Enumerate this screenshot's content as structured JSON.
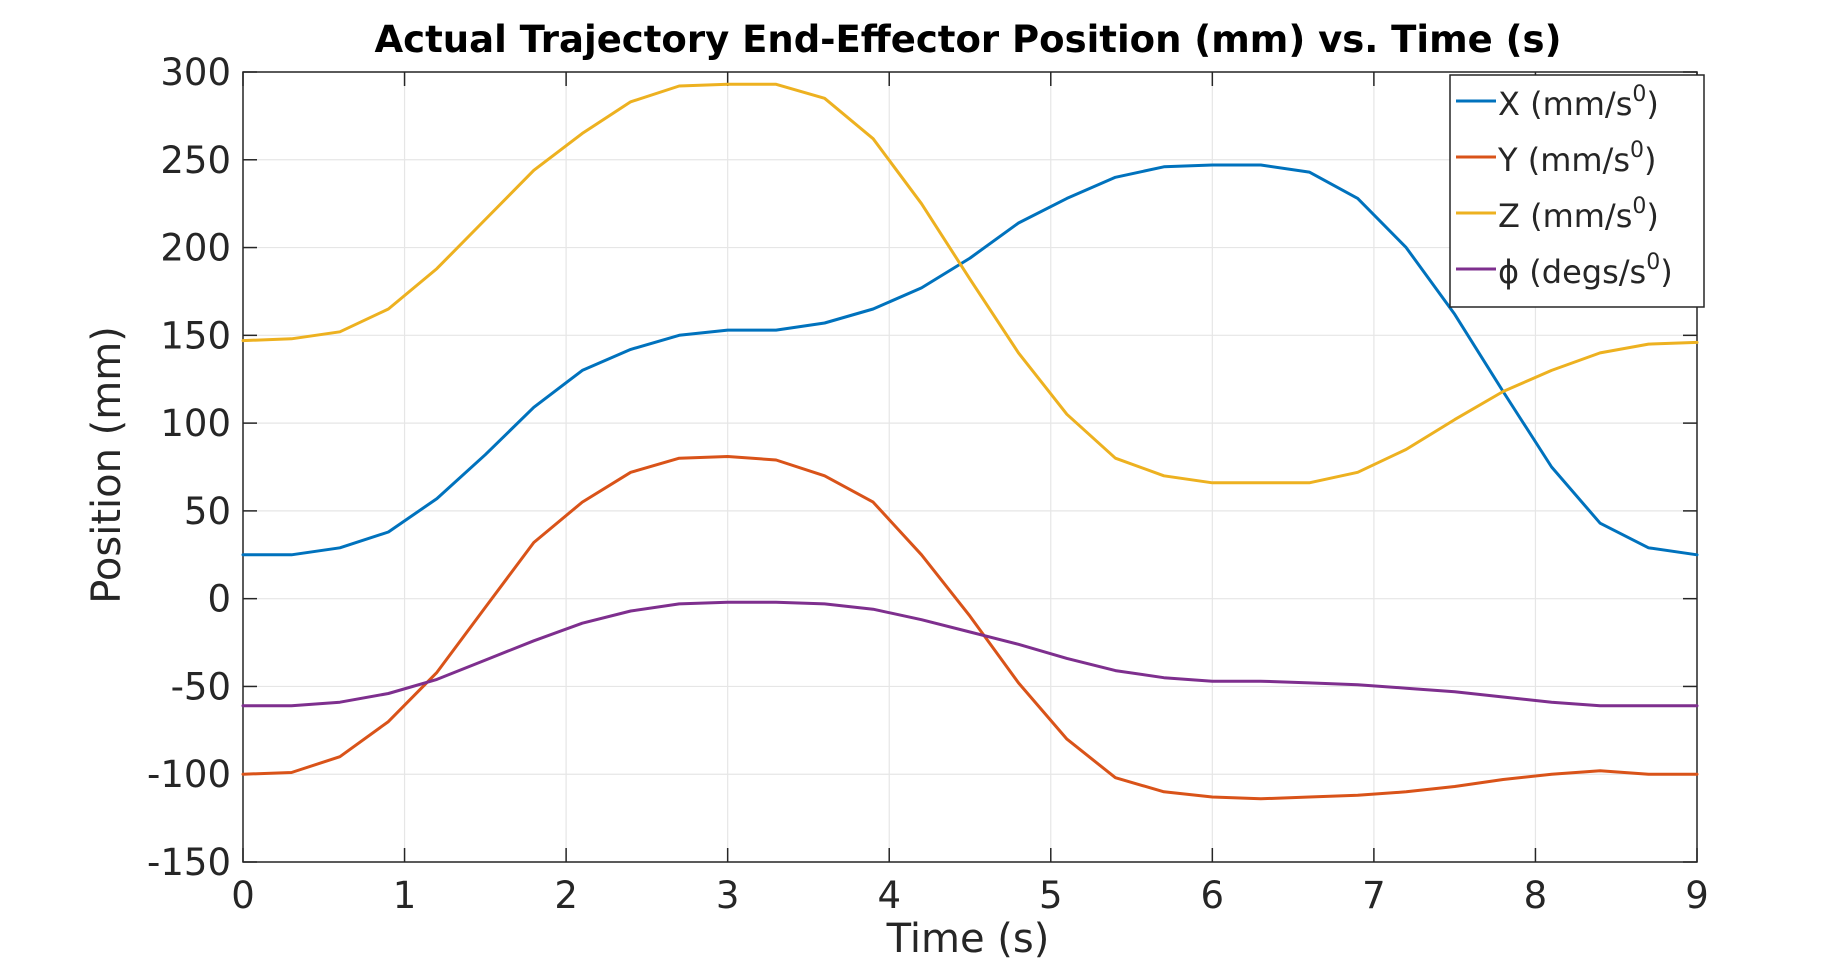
{
  "chart_data": {
    "type": "line",
    "title": "Actual Trajectory End-Effector Position (mm) vs. Time (s)",
    "xlabel": "Time (s)",
    "ylabel": "Position (mm)",
    "xlim": [
      0,
      9
    ],
    "ylim": [
      -150,
      300
    ],
    "xticks": [
      0,
      1,
      2,
      3,
      4,
      5,
      6,
      7,
      8,
      9
    ],
    "yticks": [
      -150,
      -100,
      -50,
      0,
      50,
      100,
      150,
      200,
      250,
      300
    ],
    "grid": true,
    "legend_position": "top-right",
    "series": [
      {
        "name": "X (mm/s",
        "superscript": "0",
        "suffix": ")",
        "color": "#0072BD",
        "x": [
          0,
          0.3,
          0.6,
          0.9,
          1.2,
          1.5,
          1.8,
          2.1,
          2.4,
          2.7,
          3.0,
          3.3,
          3.6,
          3.9,
          4.2,
          4.5,
          4.8,
          5.1,
          5.4,
          5.7,
          6.0,
          6.3,
          6.6,
          6.9,
          7.2,
          7.5,
          7.8,
          8.1,
          8.4,
          8.7,
          9.0
        ],
        "y": [
          25,
          25,
          29,
          38,
          57,
          82,
          109,
          130,
          142,
          150,
          153,
          153,
          157,
          165,
          177,
          194,
          214,
          228,
          240,
          246,
          247,
          247,
          243,
          228,
          200,
          162,
          118,
          75,
          43,
          29,
          25
        ]
      },
      {
        "name": "Y (mm/s",
        "superscript": "0",
        "suffix": ")",
        "color": "#D95319",
        "x": [
          0,
          0.3,
          0.6,
          0.9,
          1.2,
          1.5,
          1.8,
          2.1,
          2.4,
          2.7,
          3.0,
          3.3,
          3.6,
          3.9,
          4.2,
          4.5,
          4.8,
          5.1,
          5.4,
          5.7,
          6.0,
          6.3,
          6.6,
          6.9,
          7.2,
          7.5,
          7.8,
          8.1,
          8.4,
          8.7,
          9.0
        ],
        "y": [
          -100,
          -99,
          -90,
          -70,
          -42,
          -5,
          32,
          55,
          72,
          80,
          81,
          79,
          70,
          55,
          25,
          -10,
          -48,
          -80,
          -102,
          -110,
          -113,
          -114,
          -113,
          -112,
          -110,
          -107,
          -103,
          -100,
          -98,
          -100,
          -100
        ]
      },
      {
        "name": "Z (mm/s",
        "superscript": "0",
        "suffix": ")",
        "color": "#EDB120",
        "x": [
          0,
          0.3,
          0.6,
          0.9,
          1.2,
          1.5,
          1.8,
          2.1,
          2.4,
          2.7,
          3.0,
          3.3,
          3.6,
          3.9,
          4.2,
          4.5,
          4.8,
          5.1,
          5.4,
          5.7,
          6.0,
          6.3,
          6.6,
          6.9,
          7.2,
          7.5,
          7.8,
          8.1,
          8.4,
          8.7,
          9.0
        ],
        "y": [
          147,
          148,
          152,
          165,
          188,
          216,
          244,
          265,
          283,
          292,
          293,
          293,
          285,
          262,
          225,
          182,
          140,
          105,
          80,
          70,
          66,
          66,
          66,
          72,
          85,
          102,
          118,
          130,
          140,
          145,
          146
        ]
      },
      {
        "name": "ϕ (degs/s",
        "superscript": "0",
        "suffix": ")",
        "color": "#7E2F8E",
        "x": [
          0,
          0.3,
          0.6,
          0.9,
          1.2,
          1.5,
          1.8,
          2.1,
          2.4,
          2.7,
          3.0,
          3.3,
          3.6,
          3.9,
          4.2,
          4.5,
          4.8,
          5.1,
          5.4,
          5.7,
          6.0,
          6.3,
          6.6,
          6.9,
          7.2,
          7.5,
          7.8,
          8.1,
          8.4,
          8.7,
          9.0
        ],
        "y": [
          -61,
          -61,
          -59,
          -54,
          -46,
          -35,
          -24,
          -14,
          -7,
          -3,
          -2,
          -2,
          -3,
          -6,
          -12,
          -19,
          -26,
          -34,
          -41,
          -45,
          -47,
          -47,
          -48,
          -49,
          -51,
          -53,
          -56,
          -59,
          -61,
          -61,
          -61
        ]
      }
    ]
  }
}
